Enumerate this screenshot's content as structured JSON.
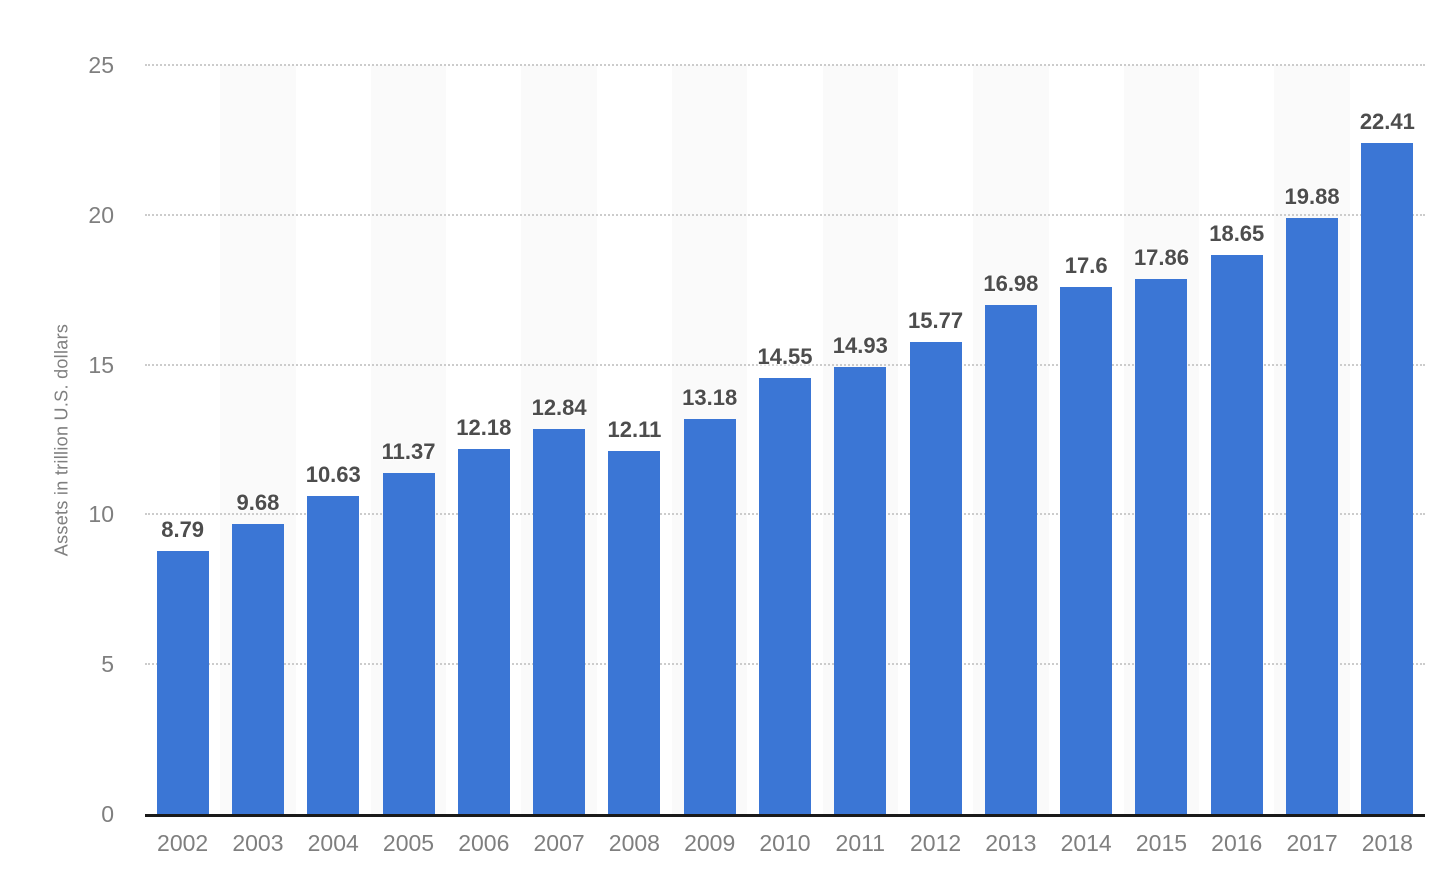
{
  "chart_data": {
    "type": "bar",
    "categories": [
      "2002",
      "2003",
      "2004",
      "2005",
      "2006",
      "2007",
      "2008",
      "2009",
      "2010",
      "2011",
      "2012",
      "2013",
      "2014",
      "2015",
      "2016",
      "2017",
      "2018"
    ],
    "values": [
      8.79,
      9.68,
      10.63,
      11.37,
      12.18,
      12.84,
      12.11,
      13.18,
      14.55,
      14.93,
      15.77,
      16.98,
      17.6,
      17.86,
      18.65,
      19.88,
      22.41
    ],
    "value_labels": [
      "8.79",
      "9.68",
      "10.63",
      "11.37",
      "12.18",
      "12.84",
      "12.11",
      "13.18",
      "14.55",
      "14.93",
      "15.77",
      "16.98",
      "17.6",
      "17.86",
      "18.65",
      "19.88",
      "22.41"
    ],
    "xlabel": "",
    "ylabel": "Assets in trillion U.S. dollars",
    "ylim": [
      0,
      25
    ],
    "yticks": [
      0,
      5,
      10,
      15,
      20,
      25
    ],
    "grid": "horizontal-dotted",
    "legend": "none",
    "colors": {
      "bar": "#3B76D5",
      "stripe": "#FAFAFA",
      "value_label": "#4D4D4D",
      "axis_text": "#7F7F7F",
      "gridline": "#CCCCCC",
      "axis_line": "#1A1A1A",
      "background": "#FFFFFF"
    }
  }
}
